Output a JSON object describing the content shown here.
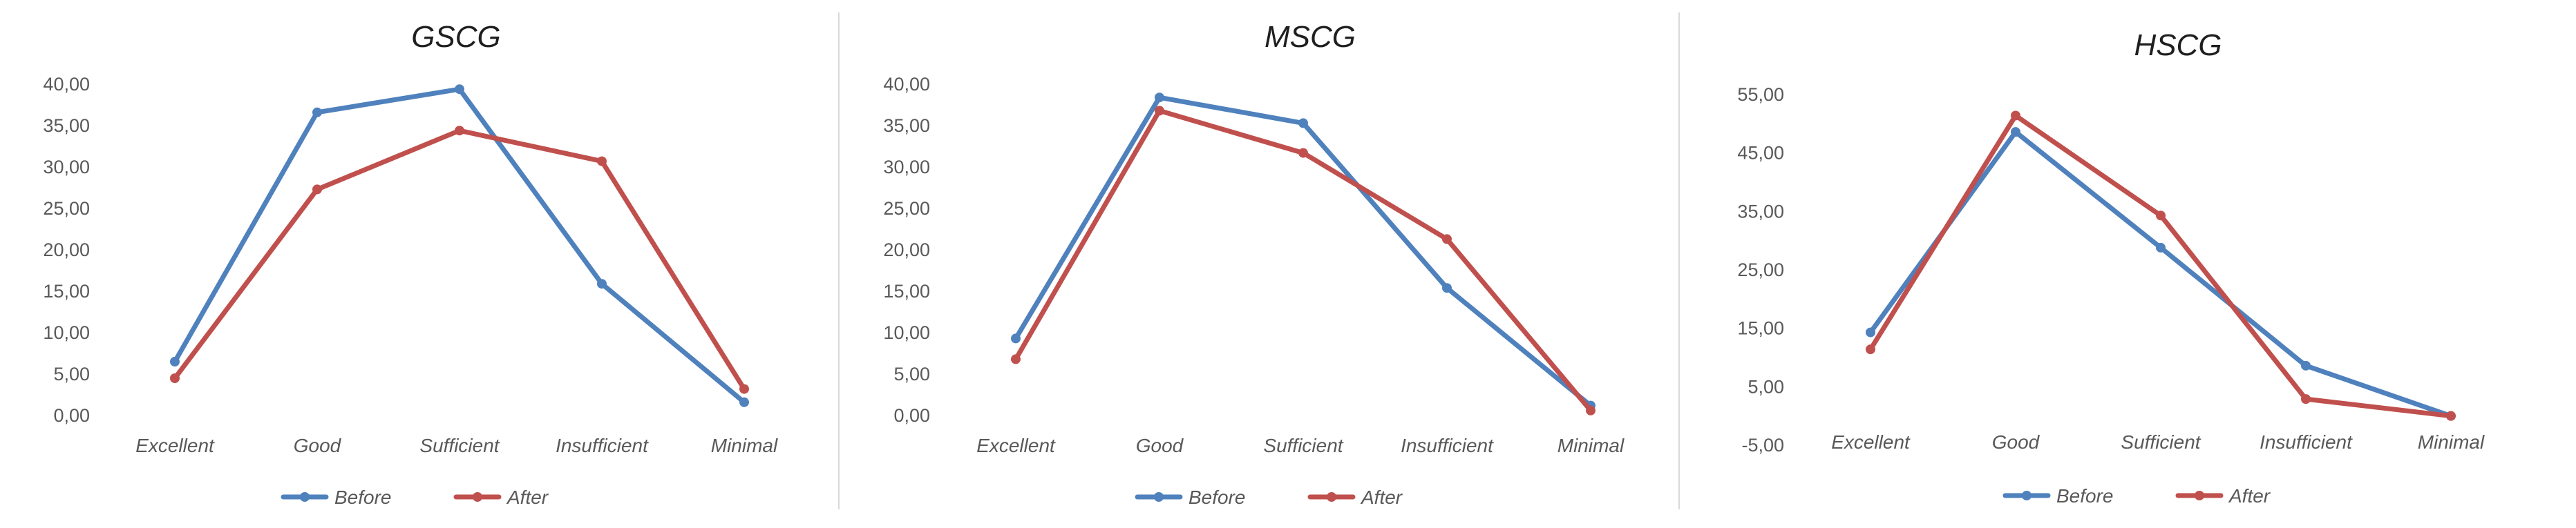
{
  "colors": {
    "before": "#4F81BD",
    "after": "#C0504D",
    "grid": "#d9d9d9",
    "text": "#595959"
  },
  "legend_placement": "bottom",
  "chart_data": [
    {
      "type": "line",
      "title": "GSCG",
      "categories": [
        "Excellent",
        "Good",
        "Sufficient",
        "Insufficient",
        "Minimal"
      ],
      "ylim": [
        0,
        40
      ],
      "yticks": [
        "0,00",
        "5,00",
        "10,00",
        "15,00",
        "20,00",
        "25,00",
        "30,00",
        "35,00",
        "40,00"
      ],
      "ytick_values": [
        0,
        5,
        10,
        15,
        20,
        25,
        30,
        35,
        40
      ],
      "grid": false,
      "series": [
        {
          "name": "Before",
          "values": [
            6.5,
            36.6,
            39.4,
            15.9,
            1.6
          ]
        },
        {
          "name": "After",
          "values": [
            4.5,
            27.3,
            34.4,
            30.7,
            3.2
          ]
        }
      ]
    },
    {
      "type": "line",
      "title": "MSCG",
      "categories": [
        "Excellent",
        "Good",
        "Sufficient",
        "Insufficient",
        "Minimal"
      ],
      "ylim": [
        0,
        40
      ],
      "yticks": [
        "0,00",
        "5,00",
        "10,00",
        "15,00",
        "20,00",
        "25,00",
        "30,00",
        "35,00",
        "40,00"
      ],
      "ytick_values": [
        0,
        5,
        10,
        15,
        20,
        25,
        30,
        35,
        40
      ],
      "grid": false,
      "series": [
        {
          "name": "Before",
          "values": [
            9.3,
            38.4,
            35.3,
            15.4,
            1.2
          ]
        },
        {
          "name": "After",
          "values": [
            6.8,
            36.8,
            31.7,
            21.3,
            0.6
          ]
        }
      ]
    },
    {
      "type": "line",
      "title": "HSCG",
      "categories": [
        "Excellent",
        "Good",
        "Sufficient",
        "Insufficient",
        "Minimal"
      ],
      "ylim": [
        -5,
        55
      ],
      "yticks": [
        "-5,00",
        "5,00",
        "15,00",
        "25,00",
        "35,00",
        "45,00",
        "55,00"
      ],
      "ytick_values": [
        -5,
        5,
        15,
        25,
        35,
        45,
        55
      ],
      "grid": false,
      "series": [
        {
          "name": "Before",
          "values": [
            14.3,
            48.6,
            28.8,
            8.6,
            0.0
          ]
        },
        {
          "name": "After",
          "values": [
            11.4,
            51.4,
            34.3,
            2.9,
            0.0
          ]
        }
      ]
    }
  ]
}
